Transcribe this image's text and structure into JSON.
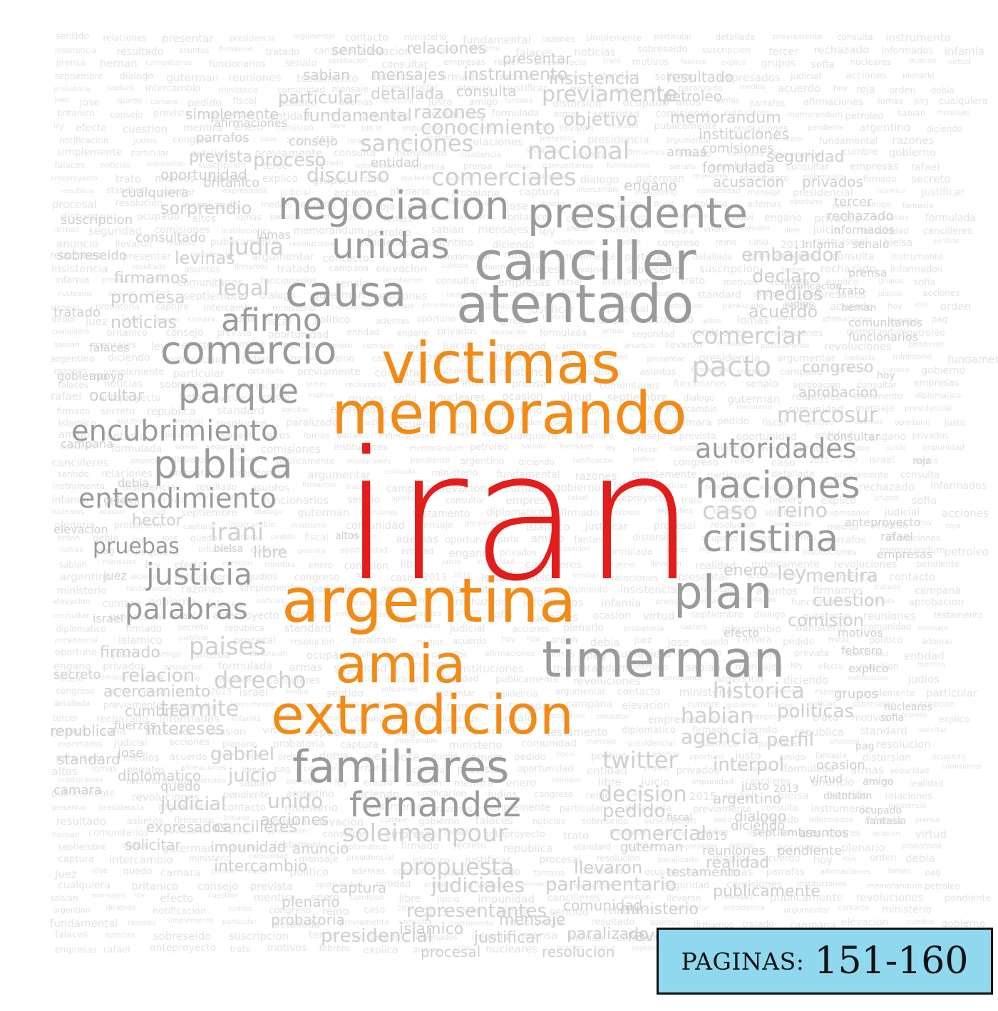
{
  "colors": {
    "red": "#e31c1c",
    "orange": "#f28a16",
    "gray": "#9a9a9a",
    "light": "#cfcfcf",
    "badge_bg": "#8fd8ee"
  },
  "cloud": {
    "main": [
      {
        "text": "iran",
        "color": "red"
      },
      {
        "text": "victimas",
        "color": "orange"
      },
      {
        "text": "memorando",
        "color": "orange"
      },
      {
        "text": "argentina",
        "color": "orange"
      },
      {
        "text": "amia",
        "color": "orange"
      },
      {
        "text": "extradicion",
        "color": "orange"
      },
      {
        "text": "canciller",
        "color": "gray"
      },
      {
        "text": "atentado",
        "color": "gray"
      },
      {
        "text": "presidente",
        "color": "gray"
      },
      {
        "text": "negociacion",
        "color": "gray"
      },
      {
        "text": "causa",
        "color": "gray"
      },
      {
        "text": "unidas",
        "color": "gray"
      },
      {
        "text": "comercio",
        "color": "gray"
      },
      {
        "text": "parque",
        "color": "gray"
      },
      {
        "text": "encubrimiento",
        "color": "gray"
      },
      {
        "text": "publica",
        "color": "gray"
      },
      {
        "text": "entendimiento",
        "color": "gray"
      },
      {
        "text": "timerman",
        "color": "gray"
      },
      {
        "text": "familiares",
        "color": "gray"
      },
      {
        "text": "fernandez",
        "color": "gray"
      },
      {
        "text": "plan",
        "color": "gray"
      },
      {
        "text": "naciones",
        "color": "gray"
      },
      {
        "text": "cristina",
        "color": "gray"
      },
      {
        "text": "autoridades",
        "color": "gray"
      },
      {
        "text": "justicia",
        "color": "gray"
      },
      {
        "text": "palabras",
        "color": "gray"
      },
      {
        "text": "afirmo",
        "color": "gray"
      },
      {
        "text": "pruebas",
        "color": "gray"
      },
      {
        "text": "soleimanpour",
        "color": "light"
      },
      {
        "text": "paises",
        "color": "light"
      },
      {
        "text": "derecho",
        "color": "light"
      },
      {
        "text": "tramite",
        "color": "light"
      },
      {
        "text": "comerciales",
        "color": "light"
      },
      {
        "text": "sanciones",
        "color": "light"
      },
      {
        "text": "nacional",
        "color": "light"
      },
      {
        "text": "comerciar",
        "color": "light"
      },
      {
        "text": "pacto",
        "color": "light"
      },
      {
        "text": "mercosur",
        "color": "light"
      },
      {
        "text": "caso",
        "color": "light"
      },
      {
        "text": "reino",
        "color": "light"
      },
      {
        "text": "judia",
        "color": "light"
      },
      {
        "text": "legal",
        "color": "light"
      },
      {
        "text": "irani",
        "color": "light"
      },
      {
        "text": "historica",
        "color": "light"
      },
      {
        "text": "habian",
        "color": "light"
      },
      {
        "text": "politicas",
        "color": "light"
      },
      {
        "text": "twitter",
        "color": "light"
      },
      {
        "text": "decision",
        "color": "light"
      },
      {
        "text": "propuesta",
        "color": "light"
      },
      {
        "text": "judiciales",
        "color": "light"
      },
      {
        "text": "parlamentario",
        "color": "light"
      },
      {
        "text": "representantes",
        "color": "light"
      },
      {
        "text": "comercial",
        "color": "light"
      },
      {
        "text": "gabriel",
        "color": "light"
      },
      {
        "text": "intereses",
        "color": "light"
      },
      {
        "text": "unido",
        "color": "light"
      },
      {
        "text": "agencia",
        "color": "light"
      },
      {
        "text": "perfil",
        "color": "light"
      },
      {
        "text": "interpol",
        "color": "light"
      },
      {
        "text": "discurso",
        "color": "light"
      },
      {
        "text": "proceso",
        "color": "light"
      },
      {
        "text": "conocimiento",
        "color": "light"
      },
      {
        "text": "objetivo",
        "color": "light"
      },
      {
        "text": "embajador",
        "color": "light"
      },
      {
        "text": "declaro",
        "color": "light"
      },
      {
        "text": "medios",
        "color": "light"
      },
      {
        "text": "acuerdo",
        "color": "light"
      },
      {
        "text": "congreso",
        "color": "light"
      },
      {
        "text": "noticias",
        "color": "light"
      },
      {
        "text": "levinas",
        "color": "light"
      },
      {
        "text": "promesa",
        "color": "light"
      },
      {
        "text": "ocultar",
        "color": "light"
      },
      {
        "text": "hector",
        "color": "light"
      },
      {
        "text": "sorprendio",
        "color": "light"
      },
      {
        "text": "previamente",
        "color": "light"
      },
      {
        "text": "razones",
        "color": "light"
      },
      {
        "text": "ley",
        "color": "light"
      },
      {
        "text": "mentira",
        "color": "light"
      },
      {
        "text": "cuestion",
        "color": "light"
      },
      {
        "text": "comision",
        "color": "light"
      },
      {
        "text": "enero",
        "color": "light"
      },
      {
        "text": "libre",
        "color": "light"
      },
      {
        "text": "juicio",
        "color": "light"
      },
      {
        "text": "judicial",
        "color": "light"
      },
      {
        "text": "acciones",
        "color": "light"
      },
      {
        "text": "presidencial",
        "color": "light"
      },
      {
        "text": "islamico",
        "color": "light"
      },
      {
        "text": "justificar",
        "color": "light"
      },
      {
        "text": "paralizado",
        "color": "light"
      },
      {
        "text": "resolucion",
        "color": "light"
      },
      {
        "text": "procesal",
        "color": "light"
      },
      {
        "text": "mensaje",
        "color": "light"
      },
      {
        "text": "revoluciones",
        "color": "light"
      },
      {
        "text": "comunidad",
        "color": "light"
      },
      {
        "text": "ministerio",
        "color": "light"
      },
      {
        "text": "publicamente",
        "color": "light"
      },
      {
        "text": "realidad",
        "color": "light"
      },
      {
        "text": "llevaron",
        "color": "light"
      },
      {
        "text": "intercambio",
        "color": "light"
      },
      {
        "text": "captura",
        "color": "light"
      },
      {
        "text": "plenario",
        "color": "light"
      },
      {
        "text": "probatoria",
        "color": "light"
      },
      {
        "text": "impunidad",
        "color": "light"
      },
      {
        "text": "cancilleres",
        "color": "light"
      },
      {
        "text": "anuncio",
        "color": "light"
      },
      {
        "text": "expresados",
        "color": "light"
      },
      {
        "text": "solicitar",
        "color": "light"
      },
      {
        "text": "diplomatico",
        "color": "light"
      },
      {
        "text": "relacion",
        "color": "light"
      },
      {
        "text": "acercamiento",
        "color": "light"
      },
      {
        "text": "firmado",
        "color": "light"
      },
      {
        "text": "republica",
        "color": "light"
      },
      {
        "text": "standard",
        "color": "light"
      },
      {
        "text": "secreto",
        "color": "light"
      },
      {
        "text": "firmamos",
        "color": "light"
      },
      {
        "text": "fundamental",
        "color": "light"
      },
      {
        "text": "simplemente",
        "color": "light"
      },
      {
        "text": "sentido",
        "color": "light"
      },
      {
        "text": "relaciones",
        "color": "light"
      },
      {
        "text": "presentar",
        "color": "light"
      },
      {
        "text": "mensajes",
        "color": "light"
      },
      {
        "text": "instrumento",
        "color": "light"
      },
      {
        "text": "insistencia",
        "color": "light"
      },
      {
        "text": "resultado",
        "color": "light"
      },
      {
        "text": "sabian",
        "color": "light"
      },
      {
        "text": "particular",
        "color": "light"
      },
      {
        "text": "detallada",
        "color": "light"
      },
      {
        "text": "consulta",
        "color": "light"
      },
      {
        "text": "petroleo",
        "color": "light"
      },
      {
        "text": "memorandum",
        "color": "light"
      },
      {
        "text": "instituciones",
        "color": "light"
      },
      {
        "text": "comisiones",
        "color": "light"
      },
      {
        "text": "seguridad",
        "color": "light"
      },
      {
        "text": "formulada",
        "color": "light"
      },
      {
        "text": "armas",
        "color": "light"
      },
      {
        "text": "acusacion",
        "color": "light"
      },
      {
        "text": "privados",
        "color": "light"
      },
      {
        "text": "engano",
        "color": "light"
      },
      {
        "text": "entidad",
        "color": "light"
      },
      {
        "text": "consejo",
        "color": "light"
      },
      {
        "text": "prevista",
        "color": "light"
      },
      {
        "text": "oportunidad",
        "color": "light"
      },
      {
        "text": "britanico",
        "color": "light"
      },
      {
        "text": "cualquiera",
        "color": "light"
      },
      {
        "text": "suscripcion",
        "color": "light"
      },
      {
        "text": "sobreseido",
        "color": "light"
      },
      {
        "text": "consultado",
        "color": "light"
      },
      {
        "text": "falaces",
        "color": "light"
      },
      {
        "text": "tratado",
        "color": "light"
      },
      {
        "text": "gobierno",
        "color": "light"
      },
      {
        "text": "campana",
        "color": "light"
      },
      {
        "text": "elevacion",
        "color": "light"
      },
      {
        "text": "tercer",
        "color": "light"
      },
      {
        "text": "rechazado",
        "color": "light"
      },
      {
        "text": "informados",
        "color": "light"
      },
      {
        "text": "infamia",
        "color": "light"
      },
      {
        "text": "prensa",
        "color": "light"
      },
      {
        "text": "notificacion",
        "color": "light"
      },
      {
        "text": "hernan",
        "color": "light"
      },
      {
        "text": "judios",
        "color": "light"
      },
      {
        "text": "comunitarios",
        "color": "light"
      },
      {
        "text": "funcionarios",
        "color": "light"
      },
      {
        "text": "aprobacion",
        "color": "light"
      },
      {
        "text": "consultar",
        "color": "light"
      },
      {
        "text": "rafael",
        "color": "light"
      },
      {
        "text": "empresas",
        "color": "light"
      },
      {
        "text": "anteproyecto",
        "color": "light"
      },
      {
        "text": "efecto",
        "color": "light"
      },
      {
        "text": "motivos",
        "color": "light"
      },
      {
        "text": "febrero",
        "color": "light"
      },
      {
        "text": "explico",
        "color": "light"
      },
      {
        "text": "grupos",
        "color": "light"
      },
      {
        "text": "nucleares",
        "color": "light"
      },
      {
        "text": "ocasion",
        "color": "light"
      },
      {
        "text": "virtud",
        "color": "light"
      },
      {
        "text": "argentino",
        "color": "light"
      },
      {
        "text": "dialogo",
        "color": "light"
      },
      {
        "text": "diciendo",
        "color": "light"
      },
      {
        "text": "septiembre",
        "color": "light"
      },
      {
        "text": "asuntos",
        "color": "light"
      },
      {
        "text": "guterman",
        "color": "light"
      },
      {
        "text": "reuniones",
        "color": "light"
      },
      {
        "text": "pendiente",
        "color": "light"
      },
      {
        "text": "testamento",
        "color": "light"
      },
      {
        "text": "camara",
        "color": "light"
      },
      {
        "text": "quedo",
        "color": "light"
      },
      {
        "text": "jose",
        "color": "light"
      },
      {
        "text": "cumbre",
        "color": "light"
      },
      {
        "text": "fuerzas",
        "color": "light"
      },
      {
        "text": "apoyo",
        "color": "light"
      },
      {
        "text": "debia",
        "color": "light"
      },
      {
        "text": "orden",
        "color": "light"
      },
      {
        "text": "juez",
        "color": "light"
      },
      {
        "text": "israel",
        "color": "light"
      },
      {
        "text": "bielsa",
        "color": "light"
      },
      {
        "text": "senalo",
        "color": "light"
      },
      {
        "text": "trato",
        "color": "light"
      },
      {
        "text": "hoy",
        "color": "light"
      },
      {
        "text": "roja",
        "color": "light"
      },
      {
        "text": "parrafos",
        "color": "light"
      },
      {
        "text": "afirmaciones",
        "color": "light"
      },
      {
        "text": "lomas",
        "color": "light"
      },
      {
        "text": "altos",
        "color": "light"
      },
      {
        "text": "pag",
        "color": "light"
      },
      {
        "text": "sofia",
        "color": "light"
      },
      {
        "text": "ocupado",
        "color": "light"
      },
      {
        "text": "distorsion",
        "color": "light"
      },
      {
        "text": "pedido",
        "color": "light"
      },
      {
        "text": "fantasia",
        "color": "light"
      },
      {
        "text": "justo",
        "color": "light"
      },
      {
        "text": "2015",
        "color": "light"
      },
      {
        "text": "2013",
        "color": "light"
      },
      {
        "text": "amigo",
        "color": "light"
      },
      {
        "text": "fiscal",
        "color": "light"
      },
      {
        "text": "politico",
        "color": "light"
      },
      {
        "text": "ademas",
        "color": "light"
      },
      {
        "text": "oportuno",
        "color": "light"
      }
    ],
    "background": [
      "sentido",
      "relaciones",
      "presentar",
      "presidencia",
      "argumentar",
      "contacto",
      "ministerio",
      "fundamental",
      "razones",
      "simplemente",
      "particular",
      "detallada",
      "previamente",
      "consulta",
      "instrumento",
      "insistencia",
      "resultado",
      "asuntos",
      "firmamos",
      "tratado",
      "campana",
      "elevacion",
      "cumbre",
      "gobierno",
      "falaces",
      "noticias",
      "sobreseido",
      "suscripcion",
      "tercer",
      "rechazado",
      "informados",
      "infamia",
      "prensa",
      "hernan",
      "comunitarios",
      "funcionarios",
      "senalo",
      "aprobacion",
      "consultar",
      "empresas",
      "rafael",
      "anteproyecto",
      "trato",
      "motivos",
      "febrero",
      "explico",
      "grupos",
      "sofia",
      "nucleares",
      "ocasion",
      "virtud",
      "septiembre",
      "dialogo",
      "guterman",
      "reuniones",
      "testamento",
      "diplomatico",
      "firmado",
      "secreto",
      "republica",
      "standard",
      "solicitar",
      "expresados",
      "judicial",
      "acciones",
      "plenario",
      "probatoria",
      "captura",
      "intercambio",
      "ministerio",
      "comunidad",
      "mensaje",
      "presidencial",
      "islamico",
      "justificar",
      "procesal",
      "resolucion",
      "paralizado",
      "medios",
      "acuerdo",
      "hoy",
      "roja",
      "orden",
      "debia",
      "juez",
      "jose",
      "quedo",
      "camara",
      "pedido",
      "fiscal",
      "politico",
      "ademas",
      "oportuno",
      "justo",
      "amigo",
      "fantasia",
      "distorsion",
      "ocupado",
      "altos",
      "lomas",
      "parrafos",
      "afirmaciones",
      "lomas",
      "pag",
      "cualquiera",
      "britanico",
      "consejo",
      "prevista",
      "oportunidad",
      "entidad",
      "engano",
      "privados",
      "acusacion",
      "formulada",
      "armas",
      "seguridad",
      "comisiones",
      "instituciones",
      "memorandum",
      "petroleo",
      "sabian",
      "mensajes",
      "ley",
      "efecto",
      "cuestion",
      "mentira",
      "enero",
      "comision",
      "libre",
      "juicio",
      "impunidad",
      "cancilleres",
      "anuncio",
      "llevaron",
      "realidad",
      "publicamente",
      "revoluciones",
      "pendiente",
      "argentino",
      "diciendo",
      "notificacion",
      "judios",
      "congreso",
      "reino",
      "caso",
      "2013",
      "2015",
      "israel",
      "bielsa"
    ],
    "badge": {
      "label": "PAGINAS:",
      "value": "151-160"
    }
  }
}
